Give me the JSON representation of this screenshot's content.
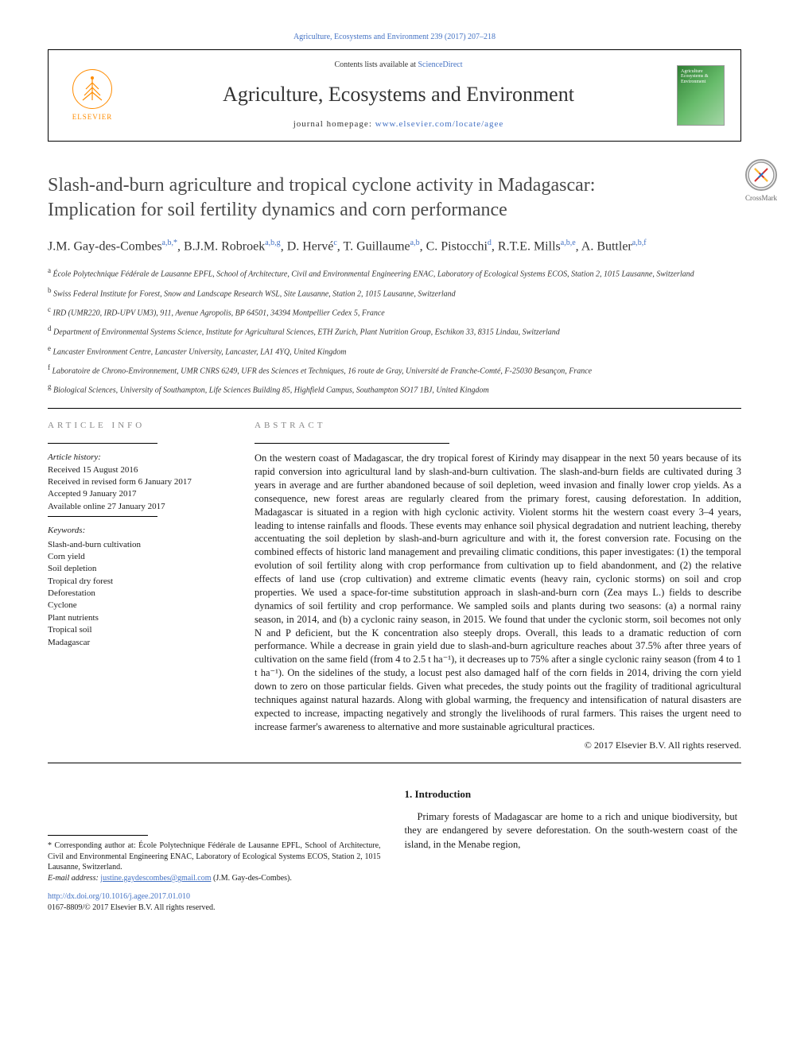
{
  "journal_ref_top": "Agriculture, Ecosystems and Environment 239 (2017) 207–218",
  "masthead": {
    "elsevier_label": "ELSEVIER",
    "contents_prefix": "Contents lists available at ",
    "contents_link": "ScienceDirect",
    "journal_name": "Agriculture, Ecosystems and Environment",
    "homepage_prefix": "journal homepage: ",
    "homepage_url": "www.elsevier.com/locate/agee",
    "thumb_line1": "Agriculture",
    "thumb_line2": "Ecosystems &",
    "thumb_line3": "Environment"
  },
  "crossmark_label": "CrossMark",
  "title": "Slash-and-burn agriculture and tropical cyclone activity in Madagascar: Implication for soil fertility dynamics and corn performance",
  "authors_html": "J.M. Gay-des-Combes<sup>a,b,*</sup>, B.J.M. Robroek<sup>a,b,g</sup>, D. Hervé<sup>c</sup>, T. Guillaume<sup>a,b</sup>, C. Pistocchi<sup>d</sup>, R.T.E. Mills<sup>a,b,e</sup>, A. Buttler<sup>a,b,f</sup>",
  "affiliations": [
    {
      "sup": "a",
      "text": "École Polytechnique Fédérale de Lausanne EPFL, School of Architecture, Civil and Environmental Engineering ENAC, Laboratory of Ecological Systems ECOS, Station 2, 1015 Lausanne, Switzerland"
    },
    {
      "sup": "b",
      "text": "Swiss Federal Institute for Forest, Snow and Landscape Research WSL, Site Lausanne, Station 2, 1015 Lausanne, Switzerland"
    },
    {
      "sup": "c",
      "text": "IRD (UMR220, IRD-UPV UM3), 911, Avenue Agropolis, BP 64501, 34394 Montpellier Cedex 5, France"
    },
    {
      "sup": "d",
      "text": "Department of Environmental Systems Science, Institute for Agricultural Sciences, ETH Zurich, Plant Nutrition Group, Eschikon 33, 8315 Lindau, Switzerland"
    },
    {
      "sup": "e",
      "text": "Lancaster Environment Centre, Lancaster University, Lancaster, LA1 4YQ, United Kingdom"
    },
    {
      "sup": "f",
      "text": "Laboratoire de Chrono-Environnement, UMR CNRS 6249, UFR des Sciences et Techniques, 16 route de Gray, Université de Franche-Comté, F-25030 Besançon, France"
    },
    {
      "sup": "g",
      "text": "Biological Sciences, University of Southampton, Life Sciences Building 85, Highfield Campus, Southampton SO17 1BJ, United Kingdom"
    }
  ],
  "article_info_label": "ARTICLE INFO",
  "abstract_label": "ABSTRACT",
  "history": {
    "label": "Article history:",
    "received": "Received 15 August 2016",
    "revised": "Received in revised form 6 January 2017",
    "accepted": "Accepted 9 January 2017",
    "online": "Available online 27 January 2017"
  },
  "keywords_label": "Keywords:",
  "keywords": [
    "Slash-and-burn cultivation",
    "Corn yield",
    "Soil depletion",
    "Tropical dry forest",
    "Deforestation",
    "Cyclone",
    "Plant nutrients",
    "Tropical soil",
    "Madagascar"
  ],
  "abstract_text": "On the western coast of Madagascar, the dry tropical forest of Kirindy may disappear in the next 50 years because of its rapid conversion into agricultural land by slash-and-burn cultivation. The slash-and-burn fields are cultivated during 3 years in average and are further abandoned because of soil depletion, weed invasion and finally lower crop yields. As a consequence, new forest areas are regularly cleared from the primary forest, causing deforestation. In addition, Madagascar is situated in a region with high cyclonic activity. Violent storms hit the western coast every 3–4 years, leading to intense rainfalls and floods. These events may enhance soil physical degradation and nutrient leaching, thereby accentuating the soil depletion by slash-and-burn agriculture and with it, the forest conversion rate. Focusing on the combined effects of historic land management and prevailing climatic conditions, this paper investigates: (1) the temporal evolution of soil fertility along with crop performance from cultivation up to field abandonment, and (2) the relative effects of land use (crop cultivation) and extreme climatic events (heavy rain, cyclonic storms) on soil and crop properties. We used a space-for-time substitution approach in slash-and-burn corn (Zea mays L.) fields to describe dynamics of soil fertility and crop performance. We sampled soils and plants during two seasons: (a) a normal rainy season, in 2014, and (b) a cyclonic rainy season, in 2015. We found that under the cyclonic storm, soil becomes not only N and P deficient, but the K concentration also steeply drops. Overall, this leads to a dramatic reduction of corn performance. While a decrease in grain yield due to slash-and-burn agriculture reaches about 37.5% after three years of cultivation on the same field (from 4 to 2.5 t ha⁻¹), it decreases up to 75% after a single cyclonic rainy season (from 4 to 1 t ha⁻¹). On the sidelines of the study, a locust pest also damaged half of the corn fields in 2014, driving the corn yield down to zero on those particular fields. Given what precedes, the study points out the fragility of traditional agricultural techniques against natural hazards. Along with global warming, the frequency and intensification of natural disasters are expected to increase, impacting negatively and strongly the livelihoods of rural farmers. This raises the urgent need to increase farmer's awareness to alternative and more sustainable agricultural practices.",
  "copyright": "© 2017 Elsevier B.V. All rights reserved.",
  "intro_heading": "1. Introduction",
  "intro_text": "Primary forests of Madagascar are home to a rich and unique biodiversity, but they are endangered by severe deforestation. On the south-western coast of the island, in the Menabe region,",
  "corresponding": "* Corresponding author at: École Polytechnique Fédérale de Lausanne EPFL, School of Architecture, Civil and Environmental Engineering ENAC, Laboratory of Ecological Systems ECOS, Station 2, 1015 Lausanne, Switzerland.",
  "email_label": "E-mail address: ",
  "email": "justine.gaydescombes@gmail.com",
  "email_suffix": " (J.M. Gay-des-Combes).",
  "doi_url": "http://dx.doi.org/10.1016/j.agee.2017.01.010",
  "issn_line": "0167-8809/© 2017 Elsevier B.V. All rights reserved.",
  "colors": {
    "link": "#4472c4",
    "elsevier_orange": "#ff8c00",
    "text": "#1a1a1a",
    "label_gray": "#888888"
  }
}
